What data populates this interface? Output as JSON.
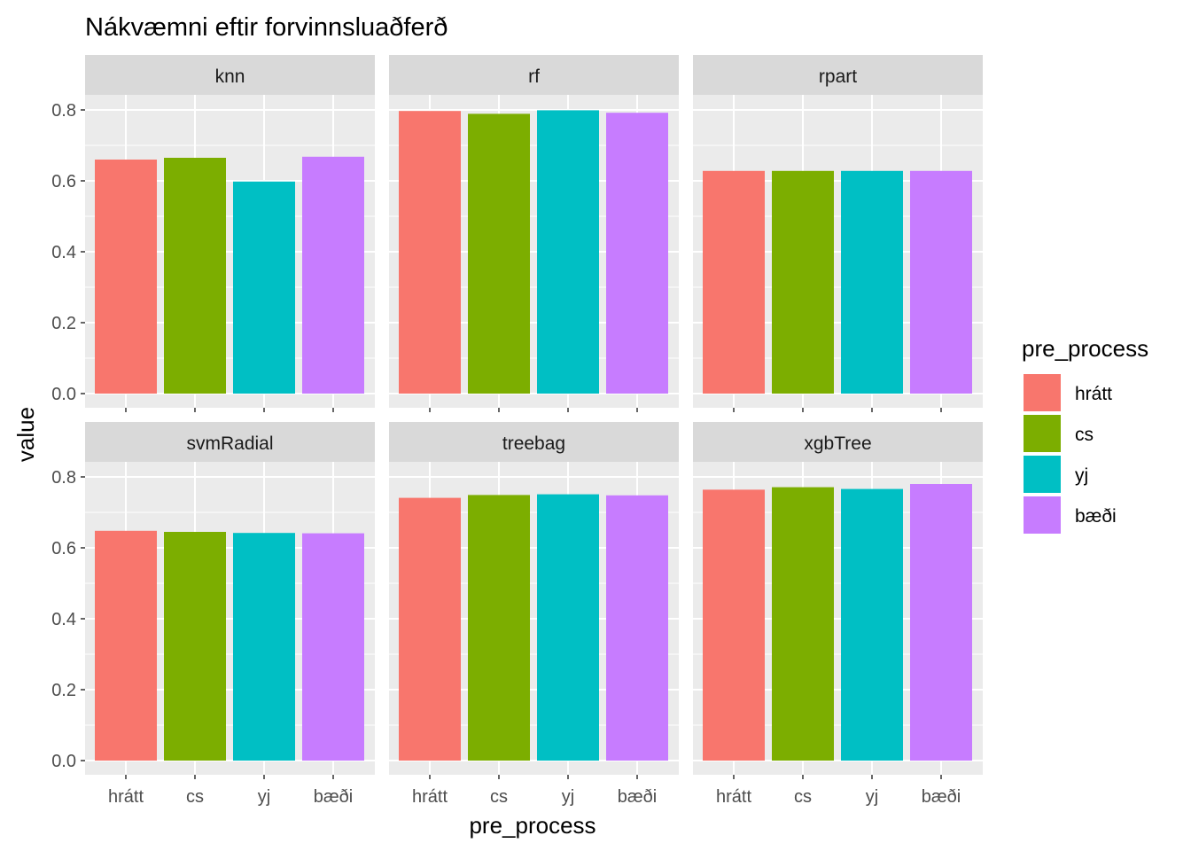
{
  "chart_data": {
    "type": "bar",
    "title": "Nákvæmni eftir forvinnsluaðferð",
    "xlabel": "pre_process",
    "ylabel": "value",
    "ylim": [
      0,
      0.8
    ],
    "yticks": [
      "0.0",
      "0.2",
      "0.4",
      "0.6",
      "0.8"
    ],
    "grid": true,
    "categories": [
      "hrátt",
      "cs",
      "yj",
      "bæði"
    ],
    "colors": {
      "hrátt": "#F8766D",
      "cs": "#7CAE00",
      "yj": "#00BFC4",
      "bæði": "#C77CFF"
    },
    "legend": {
      "title": "pre_process",
      "position": "right",
      "entries": [
        "hrátt",
        "cs",
        "yj",
        "bæði"
      ]
    },
    "facets": [
      {
        "name": "knn",
        "values": [
          0.66,
          0.665,
          0.598,
          0.668
        ]
      },
      {
        "name": "rf",
        "values": [
          0.797,
          0.789,
          0.799,
          0.792
        ]
      },
      {
        "name": "rpart",
        "values": [
          0.628,
          0.628,
          0.628,
          0.628
        ]
      },
      {
        "name": "svmRadial",
        "values": [
          0.648,
          0.645,
          0.642,
          0.641
        ]
      },
      {
        "name": "treebag",
        "values": [
          0.741,
          0.749,
          0.751,
          0.748
        ]
      },
      {
        "name": "xgbTree",
        "values": [
          0.764,
          0.771,
          0.766,
          0.78
        ]
      }
    ]
  }
}
